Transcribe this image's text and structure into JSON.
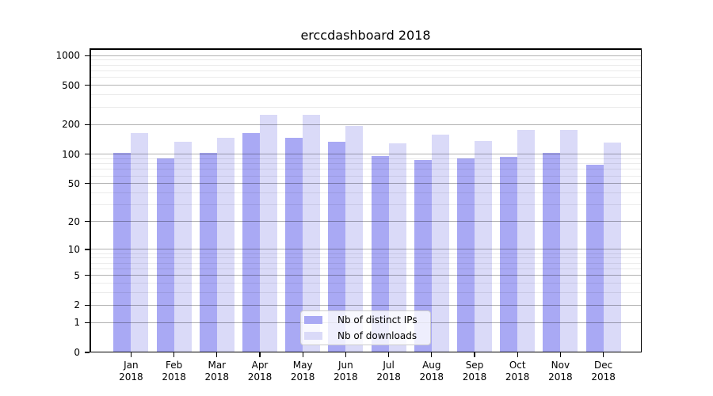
{
  "chart_data": {
    "type": "bar",
    "title": "erccdashboard 2018",
    "categories": [
      "Jan",
      "Feb",
      "Mar",
      "Apr",
      "May",
      "Jun",
      "Jul",
      "Aug",
      "Sep",
      "Oct",
      "Nov",
      "Dec"
    ],
    "year_suffix": "2018",
    "series": [
      {
        "name": "Nb of distinct IPs",
        "color": "#a9a9f4",
        "values": [
          104,
          90,
          103,
          163,
          146,
          133,
          96,
          87,
          90,
          94,
          104,
          78
        ]
      },
      {
        "name": "Nb of downloads",
        "color": "#dadaf8",
        "values": [
          163,
          135,
          146,
          253,
          249,
          193,
          129,
          159,
          137,
          178,
          178,
          132
        ]
      }
    ],
    "yscale": "log1p",
    "ylim": [
      0,
      1186
    ],
    "yticks": [
      0,
      1,
      2,
      5,
      10,
      20,
      50,
      100,
      200,
      500,
      1000
    ],
    "minor_yticks": [
      3,
      4,
      6,
      7,
      8,
      9,
      30,
      40,
      60,
      70,
      80,
      90,
      300,
      400,
      600,
      700,
      800,
      900
    ],
    "grid": true,
    "legend_position": "lower center"
  }
}
